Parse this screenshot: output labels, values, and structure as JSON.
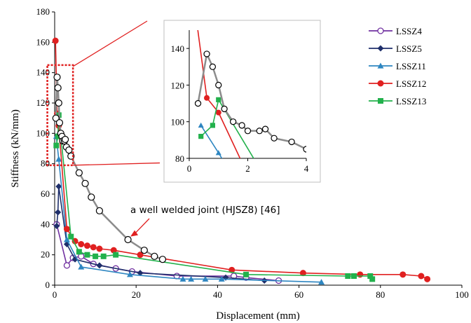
{
  "chart_data": {
    "type": "line",
    "xlabel": "Displacement (mm)",
    "ylabel": "Stiffness (kN/mm)",
    "xlim": [
      0,
      100
    ],
    "ylim": [
      0,
      180
    ],
    "xticks": [
      0,
      20,
      40,
      60,
      80,
      100
    ],
    "yticks": [
      0,
      20,
      40,
      60,
      80,
      100,
      120,
      140,
      160,
      180
    ],
    "legend_position": "top-right",
    "series": [
      {
        "name": "LSSZ4",
        "color": "#7030A0",
        "marker": "circle-open",
        "x": [
          0.5,
          3.0,
          4.5,
          6.5,
          9.5,
          15.0,
          19.0,
          30.0,
          44.0,
          47.0,
          55.0
        ],
        "y": [
          40.0,
          13.0,
          18.0,
          19.0,
          14.0,
          11.0,
          9.0,
          6.0,
          6.0,
          5.0,
          3.0
        ]
      },
      {
        "name": "LSSZ5",
        "color": "#1F2F6B",
        "marker": "diamond",
        "x": [
          0.5,
          0.8,
          1.0,
          3.0,
          5.0,
          11.0,
          21.0,
          42.0,
          51.5
        ],
        "y": [
          39.0,
          48.0,
          65.0,
          27.0,
          17.0,
          13.0,
          8.0,
          5.0,
          3.0
        ]
      },
      {
        "name": "LSSZ11",
        "color": "#2E86C1",
        "marker": "triangle",
        "x": [
          0.4,
          1.0,
          3.0,
          6.5,
          18.5,
          31.5,
          33.5,
          37.0,
          41.0,
          65.5
        ],
        "y": [
          98.0,
          83.0,
          30.0,
          12.0,
          7.0,
          4.0,
          4.0,
          4.0,
          4.0,
          2.0
        ]
      },
      {
        "name": "LSSZ12",
        "color": "#E02020",
        "marker": "circle-filled",
        "x": [
          0.2,
          0.6,
          1.0,
          3.0,
          5.0,
          6.5,
          8.0,
          9.5,
          11.0,
          14.5,
          21.0,
          43.5,
          61.0,
          75.0,
          85.5,
          90.0,
          91.5
        ],
        "y": [
          161.0,
          113.0,
          105.0,
          37.0,
          29.0,
          27.0,
          26.0,
          25.0,
          24.0,
          23.0,
          20.0,
          10.0,
          8.0,
          7.0,
          7.0,
          6.0,
          4.0
        ]
      },
      {
        "name": "LSSZ13",
        "color": "#22B14C",
        "marker": "square",
        "x": [
          0.4,
          0.8,
          1.0,
          4.0,
          6.0,
          8.0,
          10.0,
          12.0,
          15.0,
          47.0,
          72.0,
          73.5,
          77.5,
          78.0
        ],
        "y": [
          92.0,
          98.0,
          112.0,
          32.0,
          22.0,
          20.0,
          19.0,
          19.0,
          20.0,
          7.0,
          6.0,
          6.0,
          6.0,
          4.0
        ]
      },
      {
        "name": "",
        "color": "#8C8C8C",
        "marker": "circle-open-black",
        "x": [
          0.3,
          0.6,
          0.8,
          1.0,
          1.2,
          1.5,
          1.8,
          2.0,
          2.4,
          2.6,
          2.9,
          3.5,
          4.0,
          6.0,
          7.5,
          9.0,
          11.0,
          18.0,
          22.0,
          24.5,
          26.5
        ],
        "y": [
          110.0,
          137.0,
          130.0,
          120.0,
          107.0,
          100.0,
          98.0,
          95.0,
          95.0,
          96.0,
          91.0,
          89.0,
          85.0,
          74.0,
          67.0,
          58.0,
          49.0,
          30.0,
          23.0,
          19.0,
          17.0
        ]
      }
    ],
    "annotation": "a well welded joint (HJSZ8) [46]",
    "inset": {
      "xlim": [
        0,
        4
      ],
      "ylim": [
        80,
        150
      ],
      "xticks": [
        0,
        2,
        4
      ],
      "yticks": [
        80,
        100,
        120,
        140
      ]
    }
  }
}
